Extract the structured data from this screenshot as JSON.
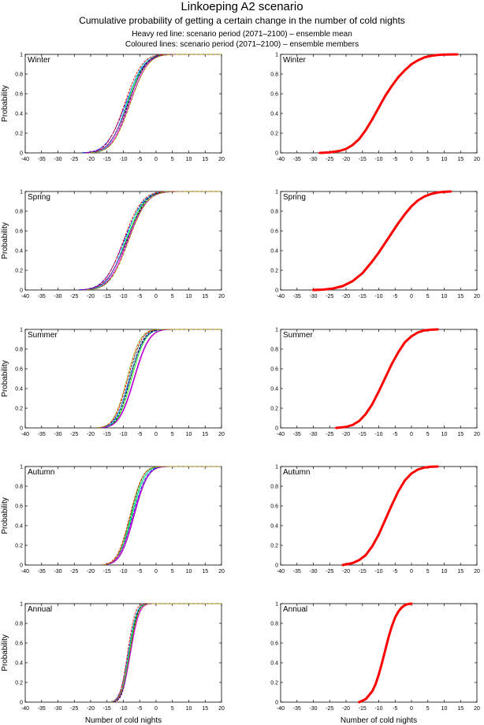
{
  "title": "Linkoeping A2 scenario",
  "subtitle": "Cumulative probability of getting a certain change in the number of cold nights",
  "note_mean": "Heavy red line: scenario period (2071–2100) – ensemble mean",
  "note_members": "Coloured lines: scenario period (2071–2100) – ensemble members",
  "chart_data": {
    "type": "line",
    "description_axes": "shared",
    "xlabel": "Number of cold nights",
    "ylabel": "Probability",
    "xlim": [
      -40,
      20
    ],
    "ylim": [
      0,
      1
    ],
    "xticks": [
      -40,
      -35,
      -30,
      -25,
      -20,
      -15,
      -10,
      -5,
      0,
      5,
      10,
      15,
      20
    ],
    "yticks": [
      0,
      0.2,
      0.4,
      0.6,
      0.8,
      1
    ],
    "series_colors": [
      "#00ff00",
      "#0000ff",
      "#000000",
      "#ff00ff",
      "#00cccc",
      "#ff0000",
      "#8800aa",
      "#999900"
    ],
    "mean_color": "#ff0000",
    "panels": [
      {
        "season": "Winter",
        "mean": {
          "x": [
            -28,
            -25,
            -22,
            -20,
            -18,
            -16,
            -14,
            -12,
            -10,
            -8,
            -6,
            -4,
            -2,
            0,
            2,
            4,
            6,
            8,
            10,
            14
          ],
          "y": [
            0.0,
            0.005,
            0.02,
            0.04,
            0.08,
            0.14,
            0.23,
            0.34,
            0.46,
            0.58,
            0.68,
            0.77,
            0.84,
            0.9,
            0.94,
            0.97,
            0.985,
            0.994,
            0.998,
            1.0
          ]
        },
        "members": [
          {
            "mu": -8.8,
            "s": 4.3
          },
          {
            "mu": -9.3,
            "s": 4.6
          },
          {
            "mu": -8.4,
            "s": 4.1
          },
          {
            "mu": -8.1,
            "s": 4.4
          },
          {
            "mu": -9.0,
            "s": 4.0
          },
          {
            "mu": -9.6,
            "s": 4.2
          },
          {
            "mu": -8.6,
            "s": 4.5
          },
          {
            "mu": -7.9,
            "s": 4.3
          }
        ]
      },
      {
        "season": "Spring",
        "mean": {
          "x": [
            -30,
            -27,
            -24,
            -21,
            -18,
            -15,
            -12,
            -10,
            -8,
            -6,
            -4,
            -2,
            0,
            2,
            4,
            6,
            8,
            10,
            12
          ],
          "y": [
            0.0,
            0.004,
            0.015,
            0.04,
            0.09,
            0.17,
            0.29,
            0.38,
            0.48,
            0.58,
            0.68,
            0.77,
            0.85,
            0.91,
            0.95,
            0.975,
            0.99,
            0.997,
            1.0
          ]
        },
        "members": [
          {
            "mu": -9.2,
            "s": 4.6
          },
          {
            "mu": -9.8,
            "s": 4.8
          },
          {
            "mu": -8.8,
            "s": 4.4
          },
          {
            "mu": -8.6,
            "s": 4.7
          },
          {
            "mu": -9.5,
            "s": 4.3
          },
          {
            "mu": -10.0,
            "s": 4.5
          },
          {
            "mu": -9.0,
            "s": 4.9
          },
          {
            "mu": -8.4,
            "s": 4.5
          }
        ]
      },
      {
        "season": "Summer",
        "mean": {
          "x": [
            -23,
            -20,
            -18,
            -16,
            -14,
            -12,
            -10,
            -8,
            -6,
            -4,
            -2,
            0,
            2,
            4,
            6,
            8
          ],
          "y": [
            0.0,
            0.01,
            0.03,
            0.07,
            0.14,
            0.24,
            0.37,
            0.51,
            0.65,
            0.77,
            0.87,
            0.93,
            0.97,
            0.99,
            0.997,
            1.0
          ]
        },
        "members": [
          {
            "mu": -7.5,
            "s": 3.3
          },
          {
            "mu": -8.0,
            "s": 3.5
          },
          {
            "mu": -7.9,
            "s": 3.2
          },
          {
            "mu": -6.6,
            "s": 3.6
          },
          {
            "mu": -8.3,
            "s": 3.1
          },
          {
            "mu": -8.6,
            "s": 3.3
          },
          {
            "mu": -6.8,
            "s": 3.6
          },
          {
            "mu": -8.9,
            "s": 3.2
          }
        ]
      },
      {
        "season": "Autumn",
        "mean": {
          "x": [
            -21,
            -18,
            -16,
            -14,
            -12,
            -10,
            -8,
            -6,
            -4,
            -2,
            0,
            2,
            4,
            6,
            8
          ],
          "y": [
            0.0,
            0.02,
            0.05,
            0.1,
            0.19,
            0.31,
            0.46,
            0.61,
            0.75,
            0.86,
            0.93,
            0.97,
            0.99,
            0.998,
            1.0
          ]
        },
        "members": [
          {
            "mu": -7.4,
            "s": 3.1
          },
          {
            "mu": -7.1,
            "s": 3.3
          },
          {
            "mu": -7.8,
            "s": 3.0
          },
          {
            "mu": -6.9,
            "s": 3.4
          },
          {
            "mu": -7.6,
            "s": 3.2
          },
          {
            "mu": -8.0,
            "s": 3.1
          },
          {
            "mu": -6.7,
            "s": 3.3
          },
          {
            "mu": -7.9,
            "s": 3.0
          }
        ]
      },
      {
        "season": "Annual",
        "mean": {
          "x": [
            -16,
            -14,
            -12,
            -11,
            -10,
            -9,
            -8,
            -7,
            -6,
            -5,
            -4,
            -3,
            -2,
            -1,
            0
          ],
          "y": [
            0.0,
            0.03,
            0.11,
            0.18,
            0.28,
            0.4,
            0.53,
            0.66,
            0.77,
            0.86,
            0.92,
            0.96,
            0.985,
            0.996,
            1.0
          ]
        },
        "members": [
          {
            "mu": -8.2,
            "s": 1.9
          },
          {
            "mu": -8.5,
            "s": 2.0
          },
          {
            "mu": -8.0,
            "s": 1.8
          },
          {
            "mu": -7.8,
            "s": 2.1
          },
          {
            "mu": -8.4,
            "s": 1.9
          },
          {
            "mu": -8.7,
            "s": 1.8
          },
          {
            "mu": -7.9,
            "s": 2.0
          },
          {
            "mu": -8.1,
            "s": 2.1
          }
        ]
      }
    ]
  }
}
